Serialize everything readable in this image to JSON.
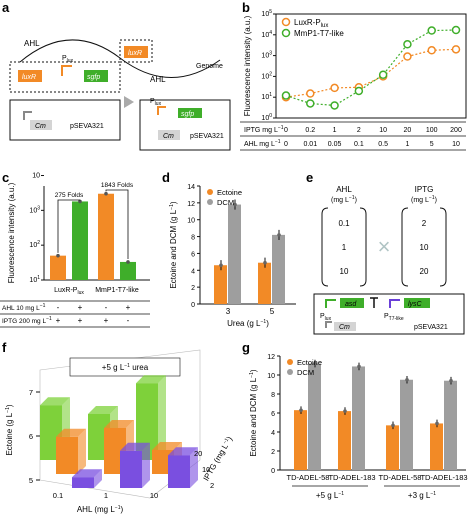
{
  "panels": {
    "a": {
      "label": "a",
      "ahl": "AHL",
      "luxr": "luxR",
      "plux": "P",
      "plux_sub": "lux",
      "sgfp": "sgfp",
      "cm": "Cm",
      "plasmid": "pSEVA321",
      "genome": "Genome"
    },
    "c": {
      "label": "c"
    },
    "d": {
      "label": "d"
    },
    "e": {
      "label": "e",
      "ahl_title": "AHL",
      "ahl_unit": "(mg L",
      "iptg_title": "IPTG",
      "iptg_unit": "(mg L",
      "ahl_values": [
        "0.1",
        "1",
        "10"
      ],
      "iptg_values": [
        "2",
        "10",
        "20"
      ],
      "cross": "×",
      "asd": "asd",
      "lysc": "lysC",
      "plux": "P",
      "plux_sub": "lux",
      "pt7": "P",
      "pt7_sub": "T7-like",
      "cm": "Cm",
      "plasmid": "pSEVA321"
    },
    "f": {
      "label": "f"
    },
    "g": {
      "label": "g"
    }
  },
  "chart_data": [
    {
      "id": "b",
      "type": "line",
      "ylabel": "Fluorescence intensity (a.u.)",
      "yscale": "log",
      "ylim": [
        1,
        100000
      ],
      "yticks": [
        "10",
        "10",
        "10",
        "10",
        "10",
        "10"
      ],
      "ytick_exp": [
        "0",
        "1",
        "2",
        "3",
        "4",
        "5"
      ],
      "x": [
        0,
        1,
        2,
        3,
        4,
        5,
        6,
        7
      ],
      "legend_placement": "top-left",
      "series": [
        {
          "name": "LuxR-P",
          "name_sub": "lux",
          "color": "#f28a26",
          "values": [
            10,
            15,
            28,
            30,
            100,
            900,
            1800,
            2000
          ]
        },
        {
          "name": "MmP1-T7-like",
          "color": "#3fae2a",
          "values": [
            12,
            5,
            4,
            20,
            120,
            3500,
            16000,
            17000
          ]
        }
      ],
      "table": [
        {
          "label": "IPTG mg L",
          "values": [
            "0",
            "0.2",
            "1",
            "2",
            "10",
            "20",
            "100",
            "200"
          ]
        },
        {
          "label": "AHL mg L",
          "values": [
            "0",
            "0.01",
            "0.05",
            "0.1",
            "0.5",
            "1",
            "5",
            "10"
          ]
        }
      ]
    },
    {
      "id": "c",
      "type": "bar",
      "ylabel": "Fluorescence intensity (a.u.)",
      "yscale": "log",
      "ylim": [
        10,
        5000
      ],
      "yticks": [
        "10",
        "10",
        "10",
        "10"
      ],
      "ytick_exp": [
        "1",
        "2",
        "3",
        ""
      ],
      "categories": [
        "LuxR-P",
        "MmP1-T7-like"
      ],
      "category_sub": [
        "lux",
        ""
      ],
      "bars": [
        {
          "group": 0,
          "value": 50,
          "color": "#f28a26"
        },
        {
          "group": 0,
          "value": 1800,
          "color": "#3fae2a"
        },
        {
          "group": 1,
          "value": 3000,
          "color": "#f28a26"
        },
        {
          "group": 1,
          "value": 33,
          "color": "#3fae2a"
        }
      ],
      "annotations": [
        "275 Folds",
        "1843 Folds"
      ],
      "table": [
        {
          "label": "AHL 10 mg L",
          "values": [
            "-",
            "+",
            "-",
            "+"
          ]
        },
        {
          "label": "IPTG 200 mg L",
          "values": [
            "+",
            "+",
            "+",
            "-"
          ]
        }
      ]
    },
    {
      "id": "d",
      "type": "bar",
      "ylabel": "Ectoine and DCM (g L",
      "xlabel": "Urea (g L",
      "ylim": [
        0,
        14
      ],
      "yticks": [
        "0",
        "2",
        "4",
        "6",
        "8",
        "10",
        "12",
        "14"
      ],
      "categories": [
        "3",
        "5"
      ],
      "series": [
        {
          "name": "Ectoine",
          "color": "#f28a26",
          "values": [
            4.6,
            4.9
          ]
        },
        {
          "name": "DCM",
          "color": "#9e9e9e",
          "values": [
            11.8,
            8.2
          ]
        }
      ],
      "legend_placement": "top-left"
    },
    {
      "id": "f",
      "type": "bar",
      "title": "+5 g L",
      "title_suffix": " urea",
      "ylabel": "Ectoine (g L",
      "xlabel": "AHL (mg L",
      "zlabel": "IPTG (mg L",
      "ylim": [
        5,
        7.5
      ],
      "yticks": [
        "5",
        "6",
        "7"
      ],
      "x_categories": [
        "0.1",
        "1",
        "10"
      ],
      "z_categories": [
        "2",
        "10",
        "20"
      ],
      "values": [
        {
          "ahl": "0.1",
          "iptg": "20",
          "value": 6.7,
          "color": "#7ed13a"
        },
        {
          "ahl": "1",
          "iptg": "20",
          "value": 6.5,
          "color": "#7ed13a"
        },
        {
          "ahl": "10",
          "iptg": "20",
          "value": 7.2,
          "color": "#7ed13a"
        },
        {
          "ahl": "0.1",
          "iptg": "10",
          "value": 6.3,
          "color": "#f28a26"
        },
        {
          "ahl": "1",
          "iptg": "10",
          "value": 6.5,
          "color": "#f28a26"
        },
        {
          "ahl": "10",
          "iptg": "10",
          "value": 6.0,
          "color": "#f28a26"
        },
        {
          "ahl": "0.1",
          "iptg": "2",
          "value": 5.7,
          "color": "#7a4fe0"
        },
        {
          "ahl": "1",
          "iptg": "2",
          "value": 6.3,
          "color": "#7a4fe0"
        },
        {
          "ahl": "10",
          "iptg": "2",
          "value": 6.2,
          "color": "#7a4fe0"
        }
      ]
    },
    {
      "id": "g",
      "type": "bar",
      "ylabel": "Ectoine and DCM (g L",
      "ylim": [
        0,
        12
      ],
      "yticks": [
        "0",
        "2",
        "4",
        "6",
        "8",
        "10",
        "12"
      ],
      "categories": [
        "TD-ADEL-58",
        "TD-ADEL-183",
        "TD-ADEL-58",
        "TD-ADEL-183"
      ],
      "groups": [
        "+5 g L",
        "+3 g L"
      ],
      "series": [
        {
          "name": "Ectoine",
          "color": "#f28a26",
          "values": [
            6.3,
            6.2,
            4.7,
            4.9
          ]
        },
        {
          "name": "DCM",
          "color": "#9e9e9e",
          "values": [
            11.2,
            10.9,
            9.5,
            9.4
          ]
        }
      ],
      "legend_placement": "top-left"
    }
  ]
}
